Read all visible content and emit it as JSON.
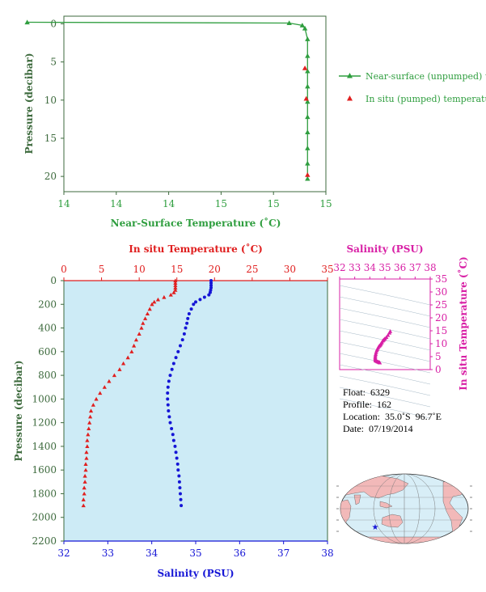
{
  "colors": {
    "green": "#2f9e3f",
    "green_axis": "#3d6a3d",
    "red": "#e01f1f",
    "blue": "#1515d6",
    "magenta": "#d81fa5",
    "panel_bg": "#cdebf6"
  },
  "chart_data": [
    {
      "type": "line",
      "xlabel": "Near-Surface Temperature (˚C)",
      "ylabel": "Pressure (decibar)",
      "xlim": [
        14,
        15
      ],
      "ylim": [
        22,
        -1
      ],
      "xticks": [
        "14",
        "14",
        "14",
        "15",
        "15",
        "15"
      ],
      "yticks": [
        "0",
        "5",
        "10",
        "15",
        "20"
      ],
      "series": [
        {
          "name": "Near-surface (unpumped) temperature.",
          "marker": "triangle",
          "points": [
            [
              13.86,
              -0.2
            ],
            [
              14.86,
              -0.1
            ],
            [
              14.91,
              0.2
            ],
            [
              14.92,
              0.6
            ],
            [
              14.93,
              2.0
            ],
            [
              14.93,
              4.2
            ],
            [
              14.93,
              6.2
            ],
            [
              14.93,
              8.2
            ],
            [
              14.93,
              10.2
            ],
            [
              14.93,
              12.2
            ],
            [
              14.93,
              14.2
            ],
            [
              14.93,
              16.3
            ],
            [
              14.93,
              18.3
            ],
            [
              14.93,
              20.3
            ]
          ]
        },
        {
          "name": "In situ (pumped) temperature.",
          "marker": "triangle",
          "points": [
            [
              14.92,
              5.8
            ],
            [
              14.925,
              9.8
            ],
            [
              14.93,
              19.8
            ]
          ]
        }
      ]
    },
    {
      "type": "scatter",
      "title": "In situ Temperature (˚C)",
      "xlabel": "Salinity (PSU)",
      "ylabel": "Pressure (decibar)",
      "temp_ticks": [
        "0",
        "5",
        "10",
        "15",
        "20",
        "25",
        "30",
        "35"
      ],
      "sal_ticks": [
        "32",
        "33",
        "34",
        "35",
        "36",
        "37",
        "38"
      ],
      "pressure_ticks": [
        "0",
        "200",
        "400",
        "600",
        "800",
        "1000",
        "1200",
        "1400",
        "1600",
        "1800",
        "2000",
        "2200"
      ],
      "temp_range": [
        0,
        35
      ],
      "salinity_range": [
        32,
        38
      ],
      "pressure_range": [
        0,
        2200
      ],
      "temperature_profile": {
        "name": "In situ Temperature (˚C)",
        "points": [
          [
            14.8,
            0
          ],
          [
            14.8,
            20
          ],
          [
            14.8,
            40
          ],
          [
            14.8,
            60
          ],
          [
            14.8,
            80
          ],
          [
            14.6,
            100
          ],
          [
            14.2,
            120
          ],
          [
            13.3,
            140
          ],
          [
            12.5,
            160
          ],
          [
            12.0,
            180
          ],
          [
            11.7,
            200
          ],
          [
            11.4,
            240
          ],
          [
            11.1,
            280
          ],
          [
            10.8,
            320
          ],
          [
            10.5,
            360
          ],
          [
            10.3,
            400
          ],
          [
            10.0,
            450
          ],
          [
            9.6,
            500
          ],
          [
            9.3,
            550
          ],
          [
            9.0,
            600
          ],
          [
            8.5,
            650
          ],
          [
            7.9,
            700
          ],
          [
            7.4,
            750
          ],
          [
            6.7,
            800
          ],
          [
            6.0,
            850
          ],
          [
            5.4,
            900
          ],
          [
            4.8,
            950
          ],
          [
            4.3,
            1000
          ],
          [
            3.9,
            1050
          ],
          [
            3.6,
            1100
          ],
          [
            3.5,
            1150
          ],
          [
            3.4,
            1200
          ],
          [
            3.3,
            1250
          ],
          [
            3.2,
            1300
          ],
          [
            3.1,
            1350
          ],
          [
            3.1,
            1400
          ],
          [
            3.0,
            1450
          ],
          [
            3.0,
            1500
          ],
          [
            2.9,
            1550
          ],
          [
            2.9,
            1600
          ],
          [
            2.8,
            1650
          ],
          [
            2.8,
            1700
          ],
          [
            2.7,
            1750
          ],
          [
            2.7,
            1800
          ],
          [
            2.6,
            1850
          ],
          [
            2.6,
            1900
          ]
        ]
      },
      "salinity_profile": {
        "name": "Salinity (PSU)",
        "points": [
          [
            35.35,
            0
          ],
          [
            35.35,
            20
          ],
          [
            35.35,
            40
          ],
          [
            35.35,
            60
          ],
          [
            35.34,
            80
          ],
          [
            35.33,
            100
          ],
          [
            35.3,
            120
          ],
          [
            35.2,
            140
          ],
          [
            35.1,
            160
          ],
          [
            35.0,
            180
          ],
          [
            34.95,
            200
          ],
          [
            34.9,
            240
          ],
          [
            34.85,
            280
          ],
          [
            34.82,
            320
          ],
          [
            34.8,
            360
          ],
          [
            34.77,
            400
          ],
          [
            34.74,
            450
          ],
          [
            34.7,
            500
          ],
          [
            34.65,
            550
          ],
          [
            34.6,
            600
          ],
          [
            34.55,
            650
          ],
          [
            34.5,
            700
          ],
          [
            34.46,
            750
          ],
          [
            34.42,
            800
          ],
          [
            34.39,
            850
          ],
          [
            34.37,
            900
          ],
          [
            34.36,
            950
          ],
          [
            34.36,
            1000
          ],
          [
            34.37,
            1050
          ],
          [
            34.38,
            1100
          ],
          [
            34.4,
            1150
          ],
          [
            34.42,
            1200
          ],
          [
            34.45,
            1250
          ],
          [
            34.48,
            1300
          ],
          [
            34.5,
            1350
          ],
          [
            34.53,
            1400
          ],
          [
            34.55,
            1450
          ],
          [
            34.57,
            1500
          ],
          [
            34.59,
            1550
          ],
          [
            34.6,
            1600
          ],
          [
            34.62,
            1650
          ],
          [
            34.63,
            1700
          ],
          [
            34.64,
            1750
          ],
          [
            34.65,
            1800
          ],
          [
            34.66,
            1850
          ],
          [
            34.67,
            1900
          ]
        ]
      }
    },
    {
      "type": "scatter",
      "title": "Salinity (PSU)",
      "ylabel": "In situ Temperature (˚C)",
      "xticks": [
        "32",
        "33",
        "34",
        "35",
        "36",
        "37",
        "38"
      ],
      "yticks": [
        "0",
        "5",
        "10",
        "15",
        "20",
        "25",
        "30",
        "35"
      ],
      "xlim": [
        32,
        38
      ],
      "ylim": [
        0,
        35
      ],
      "points": [
        [
          35.35,
          14.8
        ],
        [
          35.3,
          14.2
        ],
        [
          35.2,
          13.3
        ],
        [
          35.1,
          12.5
        ],
        [
          35.0,
          12.0
        ],
        [
          34.95,
          11.7
        ],
        [
          34.9,
          11.4
        ],
        [
          34.85,
          11.1
        ],
        [
          34.8,
          10.5
        ],
        [
          34.74,
          10.0
        ],
        [
          34.7,
          9.6
        ],
        [
          34.65,
          9.3
        ],
        [
          34.6,
          9.0
        ],
        [
          34.55,
          8.5
        ],
        [
          34.5,
          7.9
        ],
        [
          34.46,
          7.4
        ],
        [
          34.42,
          6.7
        ],
        [
          34.39,
          6.0
        ],
        [
          34.37,
          5.4
        ],
        [
          34.36,
          4.8
        ],
        [
          34.36,
          4.3
        ],
        [
          34.37,
          3.9
        ],
        [
          34.38,
          3.6
        ],
        [
          34.4,
          3.5
        ],
        [
          34.42,
          3.4
        ],
        [
          34.45,
          3.3
        ],
        [
          34.5,
          3.1
        ],
        [
          34.55,
          3.0
        ],
        [
          34.6,
          2.9
        ],
        [
          34.63,
          2.8
        ],
        [
          34.66,
          2.7
        ]
      ]
    }
  ],
  "info": {
    "float": "Float:  6329",
    "profile": "Profile:  162",
    "location": "Location:  35.0˚S  96.7˚E",
    "date": "Date:  07/19/2014"
  },
  "map": {
    "float_lat": -35.0,
    "float_lon": 96.7
  }
}
